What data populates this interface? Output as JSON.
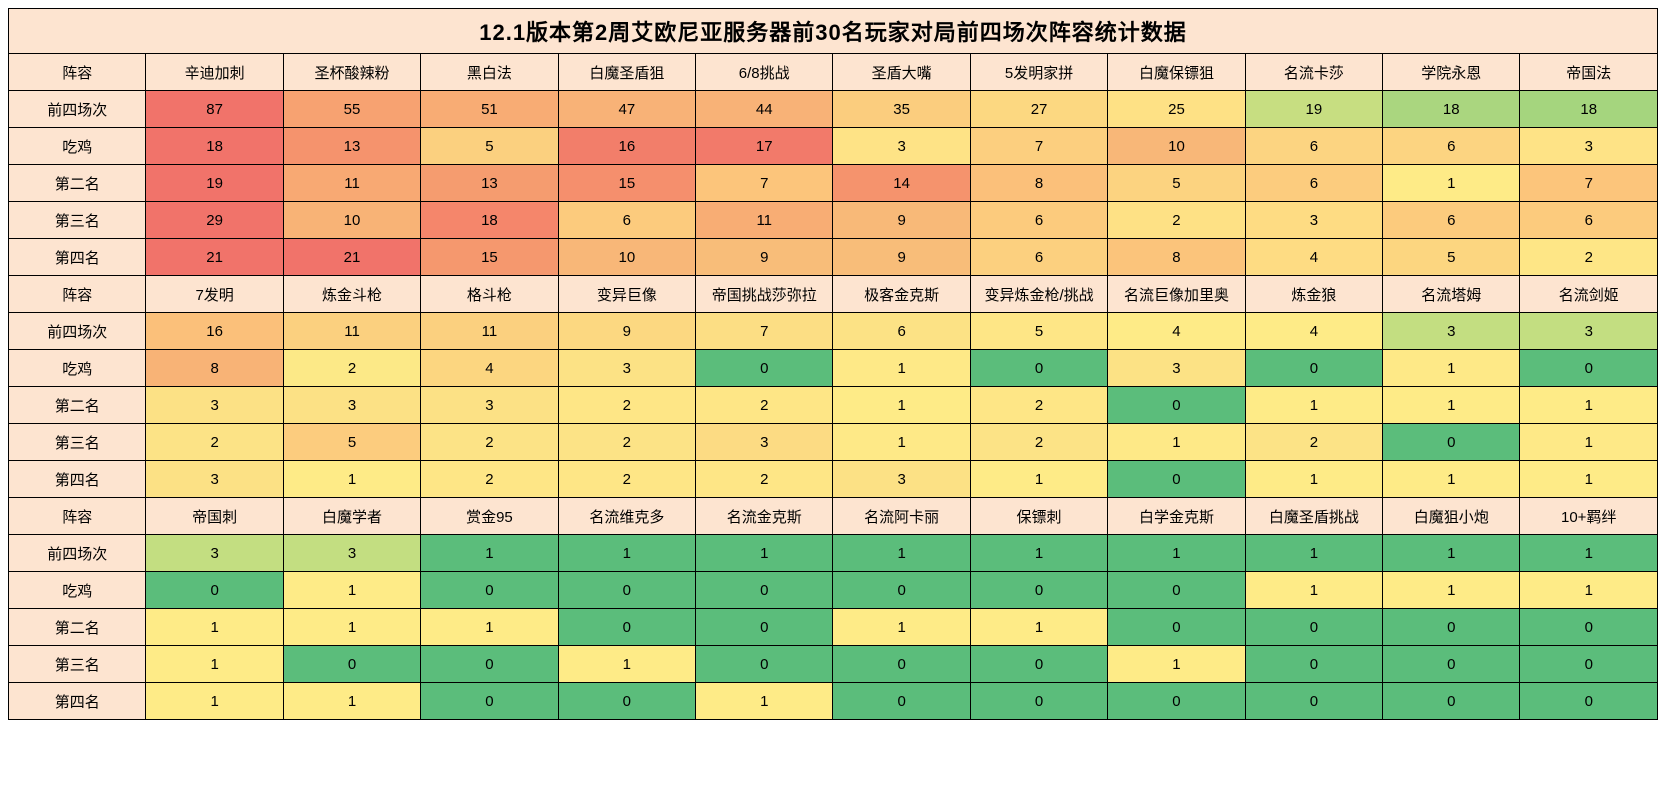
{
  "title": "12.1版本第2周艾欧尼亚服务器前30名玩家对局前四场次阵容统计数据",
  "title_bg": "#fde4d0",
  "header_bg": "#fde4d0",
  "row_labels": [
    "阵容",
    "前四场次",
    "吃鸡",
    "第二名",
    "第三名",
    "第四名"
  ],
  "blocks": [
    {
      "comps": [
        "辛迪加刺",
        "圣杯酸辣粉",
        "黑白法",
        "白魔圣盾狙",
        "6/8挑战",
        "圣盾大嘴",
        "5发明家拼",
        "白魔保镖狙",
        "名流卡莎",
        "学院永恩",
        "帝国法"
      ],
      "rows": [
        {
          "vals": [
            87,
            55,
            51,
            47,
            44,
            35,
            27,
            25,
            19,
            18,
            18
          ],
          "colors": [
            "#f1736a",
            "#f7a271",
            "#f8ac74",
            "#f8b277",
            "#f8b277",
            "#fbcd7e",
            "#fcd881",
            "#fee185",
            "#c7de81",
            "#aad67f",
            "#a5d57e"
          ]
        },
        {
          "vals": [
            18,
            13,
            5,
            16,
            17,
            3,
            7,
            10,
            6,
            6,
            3
          ],
          "colors": [
            "#f1736a",
            "#f5936d",
            "#fbd07f",
            "#f27e6a",
            "#f27a6a",
            "#fee386",
            "#fccf7f",
            "#f8b778",
            "#fcd481",
            "#fcd481",
            "#fee386"
          ]
        },
        {
          "vals": [
            19,
            11,
            13,
            15,
            7,
            14,
            8,
            5,
            6,
            1,
            7
          ],
          "colors": [
            "#f1736a",
            "#f8a973",
            "#f59c6f",
            "#f58f6d",
            "#fcc57b",
            "#f5936d",
            "#fbc07a",
            "#fcd380",
            "#fccc7e",
            "#feeb87",
            "#fcc57b"
          ]
        },
        {
          "vals": [
            29,
            10,
            18,
            6,
            11,
            9,
            6,
            2,
            3,
            6,
            6
          ],
          "colors": [
            "#f1736a",
            "#f8b376",
            "#f5866b",
            "#fccb7d",
            "#f8ad74",
            "#f8b978",
            "#fccb7d",
            "#fee185",
            "#fedc83",
            "#fccb7d",
            "#fccb7d"
          ]
        },
        {
          "vals": [
            21,
            21,
            15,
            10,
            9,
            9,
            6,
            8,
            4,
            5,
            2
          ],
          "colors": [
            "#f1736a",
            "#f1736a",
            "#f5986e",
            "#f8b778",
            "#f8bd79",
            "#f8bd79",
            "#fcd07f",
            "#fbc47b",
            "#fedc83",
            "#fcd680",
            "#fee686"
          ]
        }
      ]
    },
    {
      "comps": [
        "7发明",
        "炼金斗枪",
        "格斗枪",
        "变异巨像",
        "帝国挑战莎弥拉",
        "极客金克斯",
        "变异炼金枪/挑战",
        "名流巨像加里奥",
        "炼金狼",
        "名流塔姆",
        "名流剑姬"
      ],
      "rows": [
        {
          "vals": [
            16,
            11,
            11,
            9,
            7,
            6,
            5,
            4,
            4,
            3,
            3
          ],
          "colors": [
            "#fbc07a",
            "#fbd07f",
            "#fbd07f",
            "#fcd881",
            "#fcde84",
            "#fce285",
            "#fee686",
            "#feeb87",
            "#feeb87",
            "#c3de81",
            "#c3de81"
          ]
        },
        {
          "vals": [
            8,
            2,
            4,
            3,
            0,
            1,
            0,
            3,
            0,
            1,
            0
          ],
          "colors": [
            "#f8b376",
            "#fce987",
            "#fcd680",
            "#fce285",
            "#5bbd7b",
            "#fee987",
            "#5bbd7b",
            "#fce285",
            "#5bbd7b",
            "#fee987",
            "#5bbd7b"
          ]
        },
        {
          "vals": [
            3,
            3,
            3,
            2,
            2,
            1,
            2,
            0,
            1,
            1,
            1
          ],
          "colors": [
            "#fce185",
            "#fce185",
            "#fce185",
            "#fee686",
            "#fee686",
            "#feeb87",
            "#fee686",
            "#5bbd7b",
            "#feeb87",
            "#feeb87",
            "#feeb87"
          ]
        },
        {
          "vals": [
            2,
            5,
            2,
            2,
            3,
            1,
            2,
            1,
            2,
            0,
            1
          ],
          "colors": [
            "#fce386",
            "#fccc7e",
            "#fce386",
            "#fce386",
            "#fcdb83",
            "#fee987",
            "#fce386",
            "#fee987",
            "#fce386",
            "#5bbd7b",
            "#fee987"
          ]
        },
        {
          "vals": [
            3,
            1,
            2,
            2,
            2,
            3,
            1,
            0,
            1,
            1,
            1
          ],
          "colors": [
            "#fce185",
            "#feeb87",
            "#fee686",
            "#fee686",
            "#fee686",
            "#fce185",
            "#feeb87",
            "#5bbd7b",
            "#feeb87",
            "#feeb87",
            "#feeb87"
          ]
        }
      ]
    },
    {
      "comps": [
        "帝国刺",
        "白魔学者",
        "赏金95",
        "名流维克多",
        "名流金克斯",
        "名流阿卡丽",
        "保镖刺",
        "白学金克斯",
        "白魔圣盾挑战",
        "白魔狙小炮",
        "10+羁绊"
      ],
      "rows": [
        {
          "vals": [
            3,
            3,
            1,
            1,
            1,
            1,
            1,
            1,
            1,
            1,
            1
          ],
          "colors": [
            "#c3de81",
            "#c3de81",
            "#5bbd7b",
            "#5bbd7b",
            "#5bbd7b",
            "#5bbd7b",
            "#5bbd7b",
            "#5bbd7b",
            "#5bbd7b",
            "#5bbd7b",
            "#5bbd7b"
          ]
        },
        {
          "vals": [
            0,
            1,
            0,
            0,
            0,
            0,
            0,
            0,
            1,
            1,
            1
          ],
          "colors": [
            "#5bbd7b",
            "#feeb87",
            "#5bbd7b",
            "#5bbd7b",
            "#5bbd7b",
            "#5bbd7b",
            "#5bbd7b",
            "#5bbd7b",
            "#feeb87",
            "#feeb87",
            "#feeb87"
          ]
        },
        {
          "vals": [
            1,
            1,
            1,
            0,
            0,
            1,
            1,
            0,
            0,
            0,
            0
          ],
          "colors": [
            "#feeb87",
            "#feeb87",
            "#feeb87",
            "#5bbd7b",
            "#5bbd7b",
            "#feeb87",
            "#feeb87",
            "#5bbd7b",
            "#5bbd7b",
            "#5bbd7b",
            "#5bbd7b"
          ]
        },
        {
          "vals": [
            1,
            0,
            0,
            1,
            0,
            0,
            0,
            1,
            0,
            0,
            0
          ],
          "colors": [
            "#feeb87",
            "#5bbd7b",
            "#5bbd7b",
            "#feeb87",
            "#5bbd7b",
            "#5bbd7b",
            "#5bbd7b",
            "#feeb87",
            "#5bbd7b",
            "#5bbd7b",
            "#5bbd7b"
          ]
        },
        {
          "vals": [
            1,
            1,
            0,
            0,
            1,
            0,
            0,
            0,
            0,
            0,
            0
          ],
          "colors": [
            "#feeb87",
            "#feeb87",
            "#5bbd7b",
            "#5bbd7b",
            "#feeb87",
            "#5bbd7b",
            "#5bbd7b",
            "#5bbd7b",
            "#5bbd7b",
            "#5bbd7b",
            "#5bbd7b"
          ]
        }
      ]
    }
  ]
}
